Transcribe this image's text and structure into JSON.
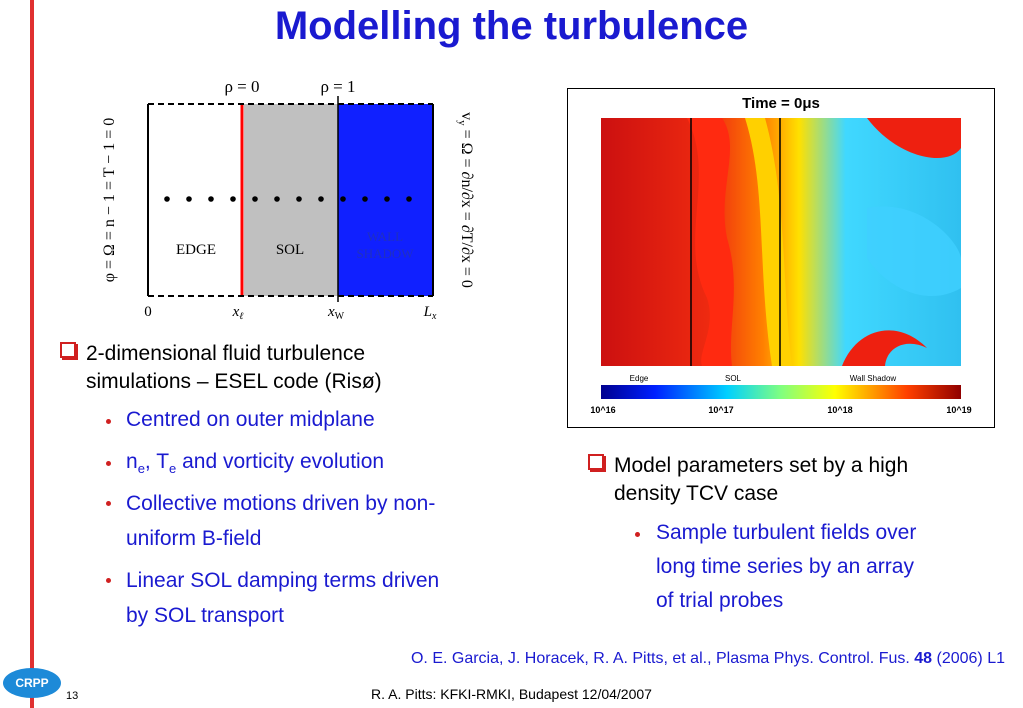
{
  "title": "Modelling the turbulence",
  "diagram": {
    "top_labels": [
      "ρ = 0",
      "ρ = 1"
    ],
    "region_labels": [
      "EDGE",
      "SOL",
      "WALL",
      "SHADOW"
    ],
    "bottom_labels": [
      "0",
      "x",
      "ℓ",
      "x",
      "W",
      "L",
      "x"
    ],
    "left_boundary": "φ = Ω = n − 1 = T − 1 = 0",
    "right_boundary_pre": "v",
    "right_boundary_sub": "y",
    "right_boundary_rest": " = Ω = ∂n/∂x = ∂T/∂x = 0",
    "colors": {
      "edge": "#ffffff",
      "sol": "#c0c0c0",
      "wall": "#1020ff",
      "sep": "#ff0000"
    }
  },
  "simulation": {
    "header": "Time = 0μs",
    "colorbar_labels": [
      "Edge",
      "SOL",
      "Wall Shadow"
    ],
    "colorbar_ticks": [
      "10^16",
      "10^17",
      "10^18",
      "10^19"
    ]
  },
  "left_bullets": {
    "main": [
      "2-dimensional fluid turbulence",
      "simulations – ESEL code (Risø)"
    ],
    "sub1": "Centred on outer midplane",
    "sub2_a": "n",
    "sub2_b": "e",
    "sub2_c": ", T",
    "sub2_d": "e",
    "sub2_e": " and vorticity evolution",
    "sub3": [
      "Collective motions driven by non-",
      "uniform B-field"
    ],
    "sub4": [
      "Linear SOL damping terms driven",
      "by SOL transport"
    ]
  },
  "right_bullets": {
    "main": [
      "Model parameters set by a high",
      "density TCV case"
    ],
    "sub1": [
      "Sample turbulent fields over",
      "long time series by an array",
      "of trial probes"
    ]
  },
  "reference": {
    "text_before": "O. E. Garcia, J. Horacek, R. A. Pitts, et al., Plasma Phys. Control. Fus. ",
    "bold": "48",
    "text_after": " (2006) L1"
  },
  "footer": "R. A. Pitts: KFKI-RMKI, Budapest 12/04/2007",
  "page_number": "13",
  "logo_text": "CRPP"
}
